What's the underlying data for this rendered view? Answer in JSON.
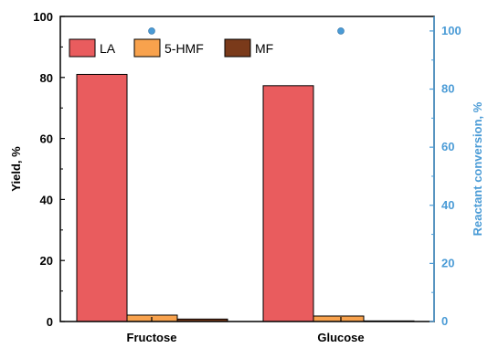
{
  "chart_data": {
    "type": "bar",
    "categories": [
      "Fructose",
      "Glucose"
    ],
    "series": [
      {
        "name": "LA",
        "values": [
          81,
          77.3
        ],
        "color": "#E95C5E"
      },
      {
        "name": "5-HMF",
        "values": [
          2.1,
          1.8
        ],
        "color": "#F8A24D"
      },
      {
        "name": "MF",
        "values": [
          0.8,
          0.2
        ],
        "color": "#7A3A1A"
      }
    ],
    "secondary_series": {
      "values": [
        100,
        100
      ],
      "color": "#4A9BD6",
      "axis": "right"
    },
    "ylabel": "Yield, %",
    "ylim": [
      0,
      100
    ],
    "yticks": [
      "0",
      "20",
      "40",
      "60",
      "80",
      "100"
    ],
    "y2label": "Reactant conversion, %",
    "y2lim": [
      0,
      105
    ],
    "y2ticks": [
      "0",
      "20",
      "40",
      "60",
      "80",
      "100"
    ],
    "y2color": "#4A9BD6",
    "legend": "top-left"
  }
}
